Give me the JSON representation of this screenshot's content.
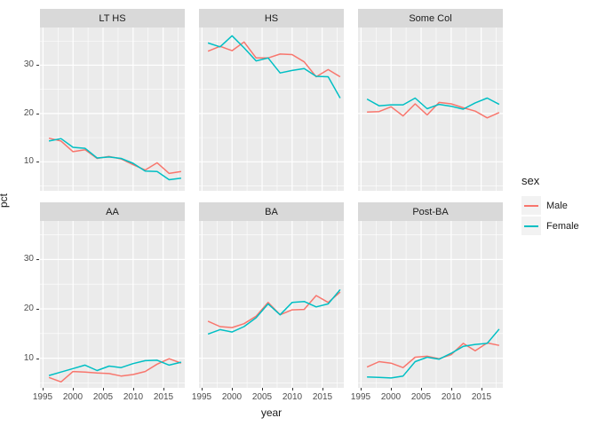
{
  "figure": {
    "ylabel": "pct",
    "xlabel": "year",
    "theme": {
      "panel_bg": "#EBEBEB",
      "strip_bg": "#D9D9D9",
      "grid_color": "#FFFFFF",
      "tick_color": "#333333",
      "tick_text_color": "#4D4D4D"
    },
    "legend": {
      "title": "sex",
      "items": [
        {
          "label": "Male",
          "color": "#F8766D"
        },
        {
          "label": "Female",
          "color": "#00BFC4"
        }
      ]
    }
  },
  "chart_data": {
    "type": "line",
    "title": "",
    "xlabel": "year",
    "ylabel": "pct",
    "legend_position": "right",
    "grid": true,
    "x": [
      1996,
      1998,
      2000,
      2002,
      2004,
      2006,
      2008,
      2010,
      2012,
      2014,
      2016,
      2018
    ],
    "x_ticks": [
      1995,
      2000,
      2005,
      2010,
      2015
    ],
    "x_minor_ticks": [
      1997.5,
      2002.5,
      2007.5,
      2012.5,
      2017.5
    ],
    "y_ticks": [
      10,
      20,
      30
    ],
    "y_minor_ticks": [
      5,
      15,
      25,
      35
    ],
    "x_range": [
      1994.5,
      2018.6
    ],
    "y_range": [
      4.0,
      37.8
    ],
    "facets": [
      {
        "label": "LT HS",
        "series": [
          {
            "name": "Male",
            "values": [
              14.9,
              14.3,
              12.1,
              12.5,
              10.7,
              11.1,
              10.6,
              9.4,
              8.3,
              9.8,
              7.6,
              8.0
            ]
          },
          {
            "name": "Female",
            "values": [
              14.3,
              14.8,
              13.0,
              12.8,
              10.8,
              11.0,
              10.7,
              9.7,
              8.1,
              8.0,
              6.3,
              6.6
            ]
          }
        ]
      },
      {
        "label": "HS",
        "series": [
          {
            "name": "Male",
            "values": [
              32.9,
              33.9,
              33.0,
              34.8,
              31.5,
              31.5,
              32.3,
              32.2,
              30.7,
              27.6,
              29.1,
              27.6
            ]
          },
          {
            "name": "Female",
            "values": [
              34.6,
              33.8,
              36.1,
              33.6,
              30.9,
              31.5,
              28.4,
              28.9,
              29.3,
              27.7,
              27.6,
              23.2
            ]
          }
        ]
      },
      {
        "label": "Some Col",
        "series": [
          {
            "name": "Male",
            "values": [
              20.3,
              20.4,
              21.4,
              19.5,
              22.0,
              19.7,
              22.3,
              22.0,
              21.2,
              20.5,
              19.1,
              20.2
            ]
          },
          {
            "name": "Female",
            "values": [
              23.0,
              21.6,
              21.8,
              21.8,
              23.2,
              21.0,
              21.9,
              21.5,
              20.9,
              22.2,
              23.2,
              21.9
            ]
          }
        ]
      },
      {
        "label": "AA",
        "series": [
          {
            "name": "Male",
            "values": [
              6.1,
              5.2,
              7.3,
              7.2,
              7.0,
              6.9,
              6.4,
              6.7,
              7.3,
              8.8,
              9.9,
              9.0
            ]
          },
          {
            "name": "Female",
            "values": [
              6.5,
              7.2,
              7.9,
              8.6,
              7.5,
              8.4,
              8.1,
              8.9,
              9.5,
              9.6,
              8.6,
              9.2
            ]
          }
        ]
      },
      {
        "label": "BA",
        "series": [
          {
            "name": "Male",
            "values": [
              17.5,
              16.4,
              16.2,
              17.0,
              18.5,
              21.3,
              18.8,
              19.8,
              19.9,
              22.7,
              21.3,
              23.4
            ]
          },
          {
            "name": "Female",
            "values": [
              14.9,
              15.8,
              15.3,
              16.4,
              18.2,
              21.0,
              18.8,
              21.3,
              21.5,
              20.4,
              21.0,
              23.9
            ]
          }
        ]
      },
      {
        "label": "Post-BA",
        "series": [
          {
            "name": "Male",
            "values": [
              8.2,
              9.3,
              9.0,
              8.1,
              10.2,
              10.4,
              9.9,
              10.7,
              13.0,
              11.5,
              13.1,
              12.6
            ]
          },
          {
            "name": "Female",
            "values": [
              6.2,
              6.1,
              6.0,
              6.4,
              9.3,
              10.2,
              9.8,
              11.0,
              12.4,
              12.8,
              13.0,
              15.9
            ]
          }
        ]
      }
    ]
  }
}
